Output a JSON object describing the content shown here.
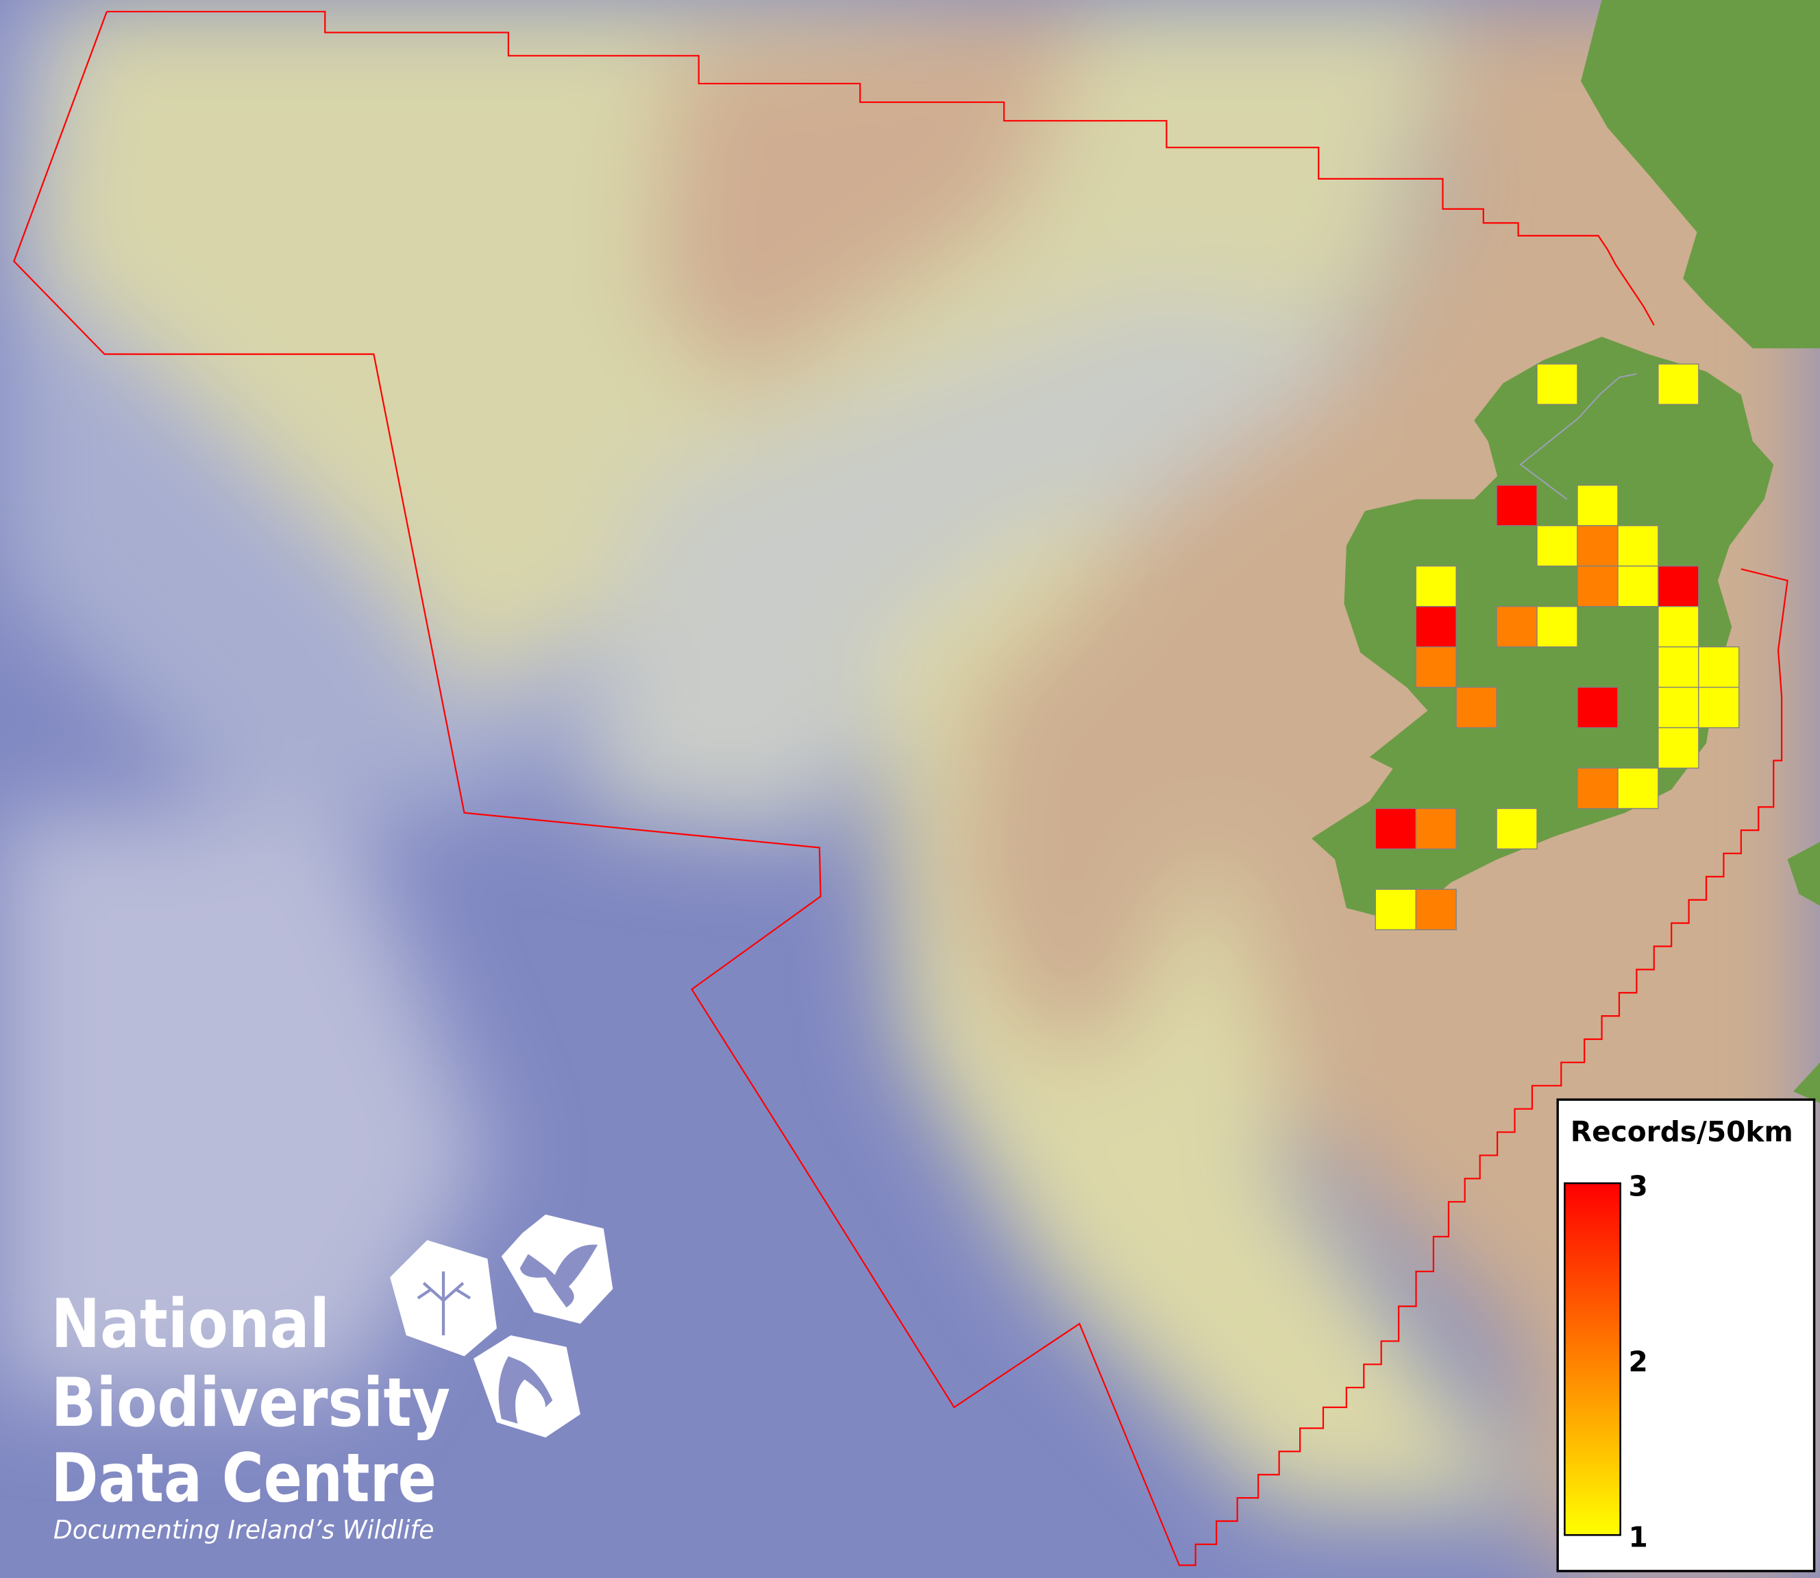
{
  "map": {
    "boundary_color": "#ff0000",
    "land_color": "#6a9c45",
    "deep_sea_color": "#7f86c2",
    "shelf_color": "#d9d5a9",
    "shallow_color": "#cdae91"
  },
  "legend": {
    "title": "Records/50km",
    "max_label": "3",
    "mid_label": "2",
    "min_label": "1",
    "color_min": "#ffff00",
    "color_mid": "#ff8000",
    "color_max": "#ff0000"
  },
  "grid_squares": {
    "cell_size": "50km",
    "values": [
      1,
      1,
      3,
      1,
      1,
      2,
      1,
      1,
      2,
      1,
      3,
      3,
      2,
      1,
      1,
      2,
      1,
      1,
      2,
      3,
      1,
      1,
      1,
      2,
      1,
      3,
      2,
      1,
      1,
      2
    ]
  },
  "logo": {
    "line1": "National",
    "line2": "Biodiversity",
    "line3": "Data Centre",
    "tagline": "Documenting Ireland’s Wildlife",
    "icons": [
      "tree-icon",
      "butterfly-icon",
      "seahorse-icon"
    ]
  }
}
